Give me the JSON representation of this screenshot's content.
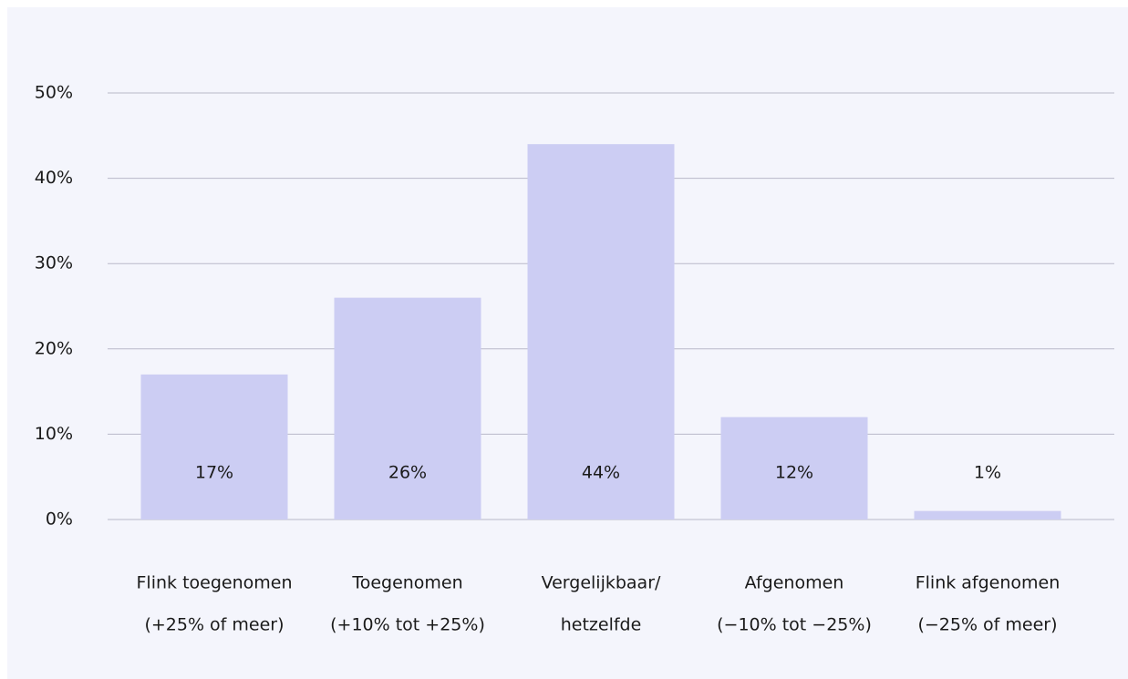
{
  "chart_data": {
    "type": "bar",
    "categories": [
      [
        "Flink toegenomen",
        "(+25% of meer)"
      ],
      [
        "Toegenomen",
        "(+10% tot +25%)"
      ],
      [
        "Vergelijkbaar/",
        "hetzelfde"
      ],
      [
        "Afgenomen",
        "(−10% tot −25%)"
      ],
      [
        "Flink afgenomen",
        "(−25% of meer)"
      ]
    ],
    "values": [
      17,
      26,
      44,
      12,
      1
    ],
    "value_labels": [
      "17%",
      "26%",
      "44%",
      "12%",
      "1%"
    ],
    "color": "#cccdf3",
    "ylim": [
      0,
      50
    ],
    "yticks": [
      {
        "value": 0,
        "label": "0%"
      },
      {
        "value": 10,
        "label": "10%"
      },
      {
        "value": 20,
        "label": "20%"
      },
      {
        "value": 30,
        "label": "30%"
      },
      {
        "value": 40,
        "label": "40%"
      },
      {
        "value": 50,
        "label": "50%"
      }
    ],
    "grid": true
  }
}
